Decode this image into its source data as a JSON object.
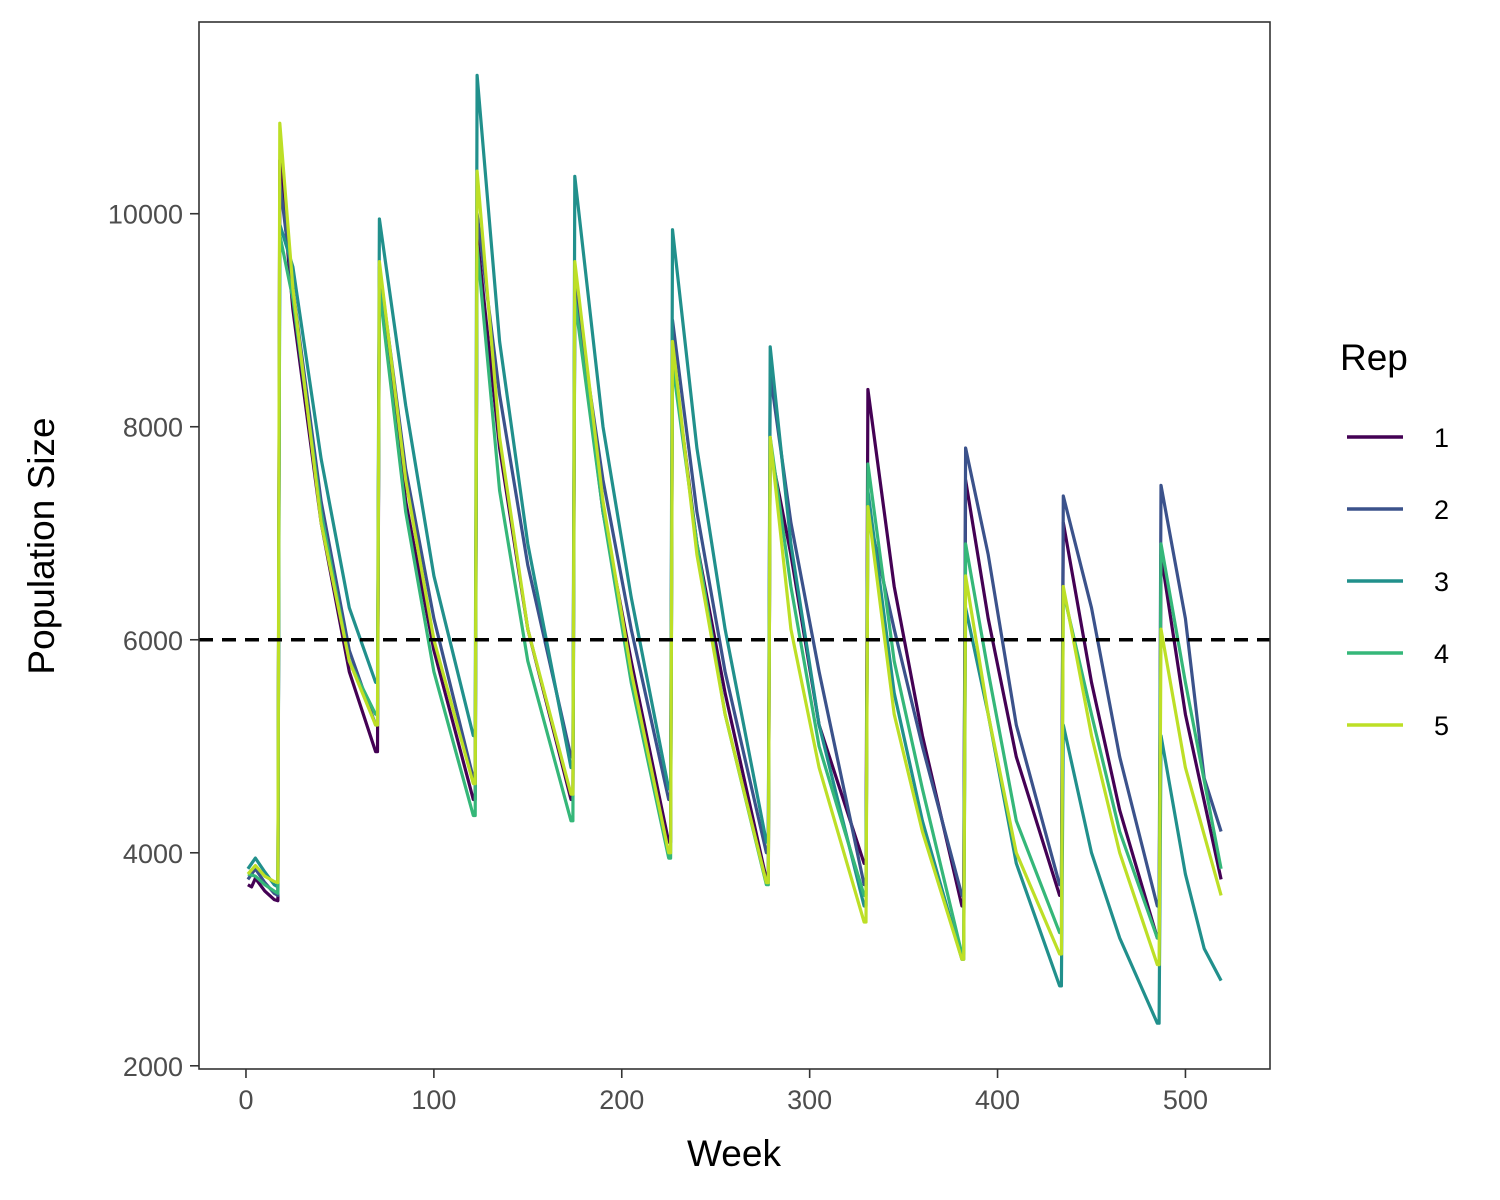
{
  "chart_data": {
    "type": "line",
    "title": "",
    "xlabel": "Week",
    "ylabel": "Population Size",
    "xlim": [
      -25,
      545
    ],
    "ylim": [
      1970,
      11800
    ],
    "x_ticks": [
      0,
      100,
      200,
      300,
      400,
      500
    ],
    "y_ticks": [
      2000,
      4000,
      6000,
      8000,
      10000
    ],
    "grid": false,
    "legend": {
      "title": "Rep",
      "position": "right"
    },
    "reference_line": {
      "y": 6000,
      "style": "dashed",
      "color": "#000000"
    },
    "series": [
      {
        "name": "1",
        "color": "#440154",
        "x": [
          1,
          3,
          5,
          10,
          15,
          17,
          18,
          25,
          40,
          55,
          69,
          70,
          71,
          85,
          100,
          121,
          122,
          123,
          135,
          150,
          173,
          174,
          175,
          190,
          205,
          225,
          226,
          227,
          240,
          255,
          277,
          278,
          279,
          290,
          305,
          329,
          330,
          331,
          345,
          360,
          381,
          382,
          383,
          395,
          410,
          433,
          434,
          435,
          450,
          465,
          485,
          486,
          487,
          500,
          519
        ],
        "y": [
          3700,
          3680,
          3760,
          3640,
          3560,
          3550,
          10500,
          9100,
          7100,
          5700,
          4950,
          4950,
          9400,
          7300,
          5900,
          4500,
          4500,
          9800,
          7800,
          6100,
          4500,
          4500,
          9300,
          7200,
          5800,
          4100,
          4100,
          8700,
          6900,
          5500,
          3750,
          3750,
          7800,
          6800,
          5200,
          3900,
          3900,
          8350,
          6500,
          5100,
          3500,
          3500,
          7500,
          6200,
          4900,
          3600,
          3600,
          7100,
          5600,
          4400,
          3200,
          3200,
          6800,
          5300,
          3750
        ]
      },
      {
        "name": "2",
        "color": "#3b528b",
        "x": [
          1,
          5,
          10,
          15,
          17,
          18,
          25,
          40,
          55,
          69,
          70,
          71,
          85,
          100,
          121,
          122,
          123,
          135,
          150,
          173,
          174,
          175,
          190,
          205,
          225,
          226,
          227,
          240,
          255,
          277,
          278,
          279,
          290,
          305,
          329,
          330,
          331,
          345,
          360,
          381,
          382,
          383,
          395,
          410,
          433,
          434,
          435,
          450,
          465,
          485,
          486,
          487,
          500,
          510,
          519
        ],
        "y": [
          3750,
          3850,
          3720,
          3620,
          3600,
          10300,
          9300,
          7300,
          5900,
          5200,
          5200,
          9500,
          7600,
          6200,
          4700,
          4700,
          10000,
          8300,
          6700,
          4900,
          4900,
          9300,
          7500,
          6100,
          4500,
          4500,
          9000,
          7200,
          5700,
          4000,
          4000,
          8500,
          7100,
          5700,
          3700,
          3700,
          7200,
          6100,
          5000,
          3600,
          3600,
          7800,
          6800,
          5200,
          3700,
          3700,
          7350,
          6300,
          4900,
          3500,
          3500,
          7450,
          6200,
          4700,
          4200
        ]
      },
      {
        "name": "3",
        "color": "#21908c",
        "x": [
          1,
          5,
          10,
          15,
          17,
          18,
          25,
          40,
          55,
          69,
          70,
          71,
          85,
          100,
          121,
          122,
          123,
          135,
          150,
          173,
          174,
          175,
          190,
          205,
          225,
          226,
          227,
          240,
          255,
          277,
          278,
          279,
          290,
          305,
          329,
          330,
          331,
          345,
          360,
          381,
          382,
          383,
          395,
          410,
          433,
          434,
          435,
          450,
          465,
          485,
          486,
          487,
          500,
          510,
          519
        ],
        "y": [
          3850,
          3950,
          3820,
          3700,
          3680,
          9900,
          9500,
          7700,
          6300,
          5600,
          5600,
          9950,
          8200,
          6600,
          5100,
          5100,
          11300,
          8800,
          6900,
          4800,
          4800,
          10350,
          8000,
          6400,
          4600,
          4600,
          9850,
          7800,
          6100,
          4100,
          4100,
          8750,
          6900,
          5200,
          3500,
          3500,
          7400,
          5500,
          4300,
          3000,
          3000,
          6300,
          5300,
          3900,
          2750,
          2750,
          5200,
          4000,
          3200,
          2400,
          2400,
          5100,
          3800,
          3100,
          2800
        ]
      },
      {
        "name": "4",
        "color": "#35b779",
        "x": [
          1,
          5,
          10,
          15,
          17,
          18,
          25,
          40,
          55,
          69,
          70,
          71,
          85,
          100,
          121,
          122,
          123,
          135,
          150,
          173,
          174,
          175,
          190,
          205,
          225,
          226,
          227,
          240,
          255,
          277,
          278,
          279,
          290,
          305,
          329,
          330,
          331,
          345,
          360,
          381,
          382,
          383,
          395,
          410,
          433,
          434,
          435,
          450,
          465,
          485,
          486,
          487,
          500,
          519
        ],
        "y": [
          3800,
          3780,
          3700,
          3640,
          3620,
          9800,
          9200,
          7200,
          5800,
          5300,
          5300,
          9300,
          7200,
          5700,
          4350,
          4350,
          9700,
          7400,
          5800,
          4300,
          4300,
          9200,
          7200,
          5600,
          3950,
          3950,
          8600,
          6900,
          5300,
          3700,
          3700,
          7900,
          6500,
          5000,
          3600,
          3600,
          7650,
          5800,
          4600,
          3050,
          3050,
          6900,
          5700,
          4300,
          3250,
          3250,
          6450,
          5300,
          4200,
          3200,
          3200,
          6900,
          5600,
          3850
        ]
      },
      {
        "name": "5",
        "color": "#bddf26",
        "x": [
          1,
          5,
          10,
          15,
          17,
          18,
          25,
          40,
          55,
          69,
          70,
          71,
          85,
          100,
          121,
          122,
          123,
          135,
          150,
          173,
          174,
          175,
          190,
          205,
          225,
          226,
          227,
          240,
          255,
          277,
          278,
          279,
          290,
          305,
          329,
          330,
          331,
          345,
          360,
          381,
          382,
          383,
          395,
          410,
          433,
          434,
          435,
          450,
          465,
          485,
          486,
          487,
          500,
          519
        ],
        "y": [
          3800,
          3880,
          3780,
          3730,
          3720,
          10850,
          9300,
          7100,
          5800,
          5200,
          5200,
          9550,
          7500,
          6000,
          4650,
          4650,
          10400,
          7900,
          6100,
          4550,
          4550,
          9550,
          7300,
          5700,
          4000,
          4000,
          8800,
          6800,
          5300,
          3720,
          3720,
          7900,
          6100,
          4800,
          3350,
          3350,
          7250,
          5300,
          4200,
          3000,
          3000,
          6600,
          5300,
          4000,
          3050,
          3050,
          6500,
          5100,
          4000,
          2950,
          2950,
          6100,
          4800,
          3600
        ]
      }
    ]
  }
}
